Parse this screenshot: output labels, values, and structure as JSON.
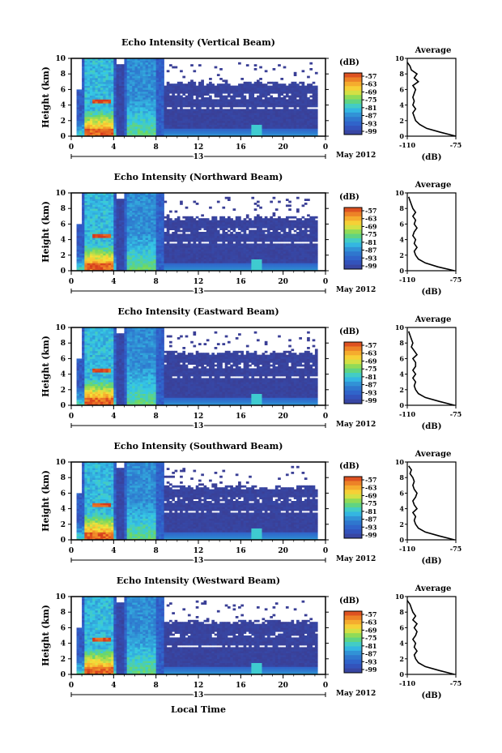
{
  "figure": {
    "x_common_label": "Local Time",
    "date_label": "May 2012",
    "day_label": "13",
    "colorbar_unit": "(dB)",
    "colorbar_ticks": [
      "-57",
      "-63",
      "-69",
      "-75",
      "-81",
      "-87",
      "-93",
      "-99"
    ],
    "avg_title": "Average",
    "avg_xlabel": "(dB)",
    "avg_xticks_row1": [
      "-110",
      "-75"
    ],
    "avg_xticks_rows2to5": [
      "-110",
      "-75"
    ],
    "colors": {
      "background_low": "#3a3f96",
      "mid": "#2f80d0",
      "cyan": "#35c8e6",
      "green": "#6ed860",
      "yellow": "#f6e23a",
      "orange": "#f59a2a",
      "red": "#d63a1e"
    }
  },
  "chart_data": [
    {
      "type": "heatmap",
      "title": "Echo Intensity (Vertical Beam)",
      "ylabel": "Height (km)",
      "xlabel": "Local Time",
      "x_ticks": [
        "0",
        "4",
        "8",
        "12",
        "16",
        "20",
        "0"
      ],
      "y_ticks": [
        "0",
        "2",
        "4",
        "6",
        "8",
        "10"
      ],
      "xlim": [
        0,
        24
      ],
      "ylim": [
        0,
        10
      ],
      "colorbar": {
        "unit": "(dB)",
        "range": [
          -99,
          -57
        ]
      },
      "average_profile": {
        "title": "Average",
        "xlabel": "(dB)",
        "xlim": [
          -110,
          -75
        ],
        "x_ticks": [
          "-110",
          "-75"
        ],
        "height": [
          0.0,
          0.5,
          1.0,
          1.5,
          2.0,
          2.5,
          3.0,
          3.5,
          4.0,
          4.5,
          5.0,
          5.5,
          6.0,
          6.5,
          7.0,
          7.5,
          8.0,
          8.5,
          9.0,
          9.5
        ],
        "values": [
          -75,
          -86,
          -96,
          -101,
          -104,
          -105,
          -106,
          -104,
          -106,
          -105,
          -106,
          -105,
          -104,
          -106,
          -102,
          -105,
          -103,
          -107,
          -108,
          -110
        ]
      }
    },
    {
      "type": "heatmap",
      "title": "Echo Intensity (Northward Beam)",
      "ylabel": "Height (km)",
      "xlabel": "Local Time",
      "x_ticks": [
        "0",
        "4",
        "8",
        "12",
        "16",
        "20",
        "0"
      ],
      "y_ticks": [
        "0",
        "2",
        "4",
        "6",
        "8",
        "10"
      ],
      "xlim": [
        0,
        24
      ],
      "ylim": [
        0,
        10
      ],
      "colorbar": {
        "unit": "(dB)",
        "range": [
          -99,
          -57
        ]
      },
      "average_profile": {
        "title": "Average",
        "xlabel": "(dB)",
        "xlim": [
          -110,
          -75
        ],
        "x_ticks": [
          "-110",
          "-75"
        ],
        "height": [
          0.0,
          0.5,
          1.0,
          1.5,
          2.0,
          2.5,
          3.0,
          3.5,
          4.0,
          4.5,
          5.0,
          5.5,
          6.0,
          6.5,
          7.0,
          7.5,
          8.0,
          8.5,
          9.0,
          9.5
        ],
        "values": [
          -76,
          -88,
          -97,
          -102,
          -104,
          -105,
          -103,
          -105,
          -104,
          -106,
          -105,
          -103,
          -105,
          -104,
          -106,
          -104,
          -106,
          -107,
          -108,
          -109
        ]
      }
    },
    {
      "type": "heatmap",
      "title": "Echo Intensity (Eastward Beam)",
      "ylabel": "Height (km)",
      "xlabel": "Local Time",
      "x_ticks": [
        "0",
        "4",
        "8",
        "12",
        "16",
        "20",
        "0"
      ],
      "y_ticks": [
        "0",
        "2",
        "4",
        "6",
        "8",
        "10"
      ],
      "xlim": [
        0,
        24
      ],
      "ylim": [
        0,
        10
      ],
      "colorbar": {
        "unit": "(dB)",
        "range": [
          -99,
          -57
        ]
      },
      "average_profile": {
        "title": "Average",
        "xlabel": "(dB)",
        "xlim": [
          -110,
          -75
        ],
        "x_ticks": [
          "-110",
          "-75"
        ],
        "height": [
          0.0,
          0.5,
          1.0,
          1.5,
          2.0,
          2.5,
          3.0,
          3.5,
          4.0,
          4.5,
          5.0,
          5.5,
          6.0,
          6.5,
          7.0,
          7.5,
          8.0,
          8.5,
          9.0,
          9.5
        ],
        "values": [
          -76,
          -87,
          -97,
          -102,
          -104,
          -105,
          -104,
          -106,
          -104,
          -106,
          -104,
          -104,
          -106,
          -103,
          -105,
          -107,
          -106,
          -107,
          -108,
          -109
        ]
      }
    },
    {
      "type": "heatmap",
      "title": "Echo Intensity (Southward Beam)",
      "ylabel": "Height (km)",
      "xlabel": "Local Time",
      "x_ticks": [
        "0",
        "4",
        "8",
        "12",
        "16",
        "20",
        "0"
      ],
      "y_ticks": [
        "0",
        "2",
        "4",
        "6",
        "8",
        "10"
      ],
      "xlim": [
        0,
        24
      ],
      "ylim": [
        0,
        10
      ],
      "colorbar": {
        "unit": "(dB)",
        "range": [
          -99,
          -57
        ]
      },
      "average_profile": {
        "title": "Average",
        "xlabel": "(dB)",
        "xlim": [
          -110,
          -75
        ],
        "x_ticks": [
          "-110",
          "-75"
        ],
        "height": [
          0.0,
          0.5,
          1.0,
          1.5,
          2.0,
          2.5,
          3.0,
          3.5,
          4.0,
          4.5,
          5.0,
          5.5,
          6.0,
          6.5,
          7.0,
          7.5,
          8.0,
          8.5,
          9.0,
          9.5
        ],
        "values": [
          -76,
          -87,
          -97,
          -102,
          -104,
          -105,
          -104,
          -106,
          -103,
          -105,
          -106,
          -104,
          -103,
          -105,
          -106,
          -105,
          -106,
          -108,
          -107,
          -109
        ]
      }
    },
    {
      "type": "heatmap",
      "title": "Echo Intensity (Westward Beam)",
      "ylabel": "Height (km)",
      "xlabel": "Local Time",
      "x_ticks": [
        "0",
        "4",
        "8",
        "12",
        "16",
        "20",
        "0"
      ],
      "y_ticks": [
        "0",
        "2",
        "4",
        "6",
        "8",
        "10"
      ],
      "xlim": [
        0,
        24
      ],
      "ylim": [
        0,
        10
      ],
      "colorbar": {
        "unit": "(dB)",
        "range": [
          -99,
          -57
        ]
      },
      "average_profile": {
        "title": "Average",
        "xlabel": "(dB)",
        "xlim": [
          -110,
          -75
        ],
        "x_ticks": [
          "-110",
          "-75"
        ],
        "height": [
          0.0,
          0.5,
          1.0,
          1.5,
          2.0,
          2.5,
          3.0,
          3.5,
          4.0,
          4.5,
          5.0,
          5.5,
          6.0,
          6.5,
          7.0,
          7.5,
          8.0,
          8.5,
          9.0,
          9.5
        ],
        "values": [
          -76,
          -87,
          -97,
          -102,
          -104,
          -105,
          -103,
          -105,
          -104,
          -106,
          -104,
          -103,
          -105,
          -103,
          -106,
          -104,
          -106,
          -107,
          -108,
          -110
        ]
      }
    }
  ]
}
